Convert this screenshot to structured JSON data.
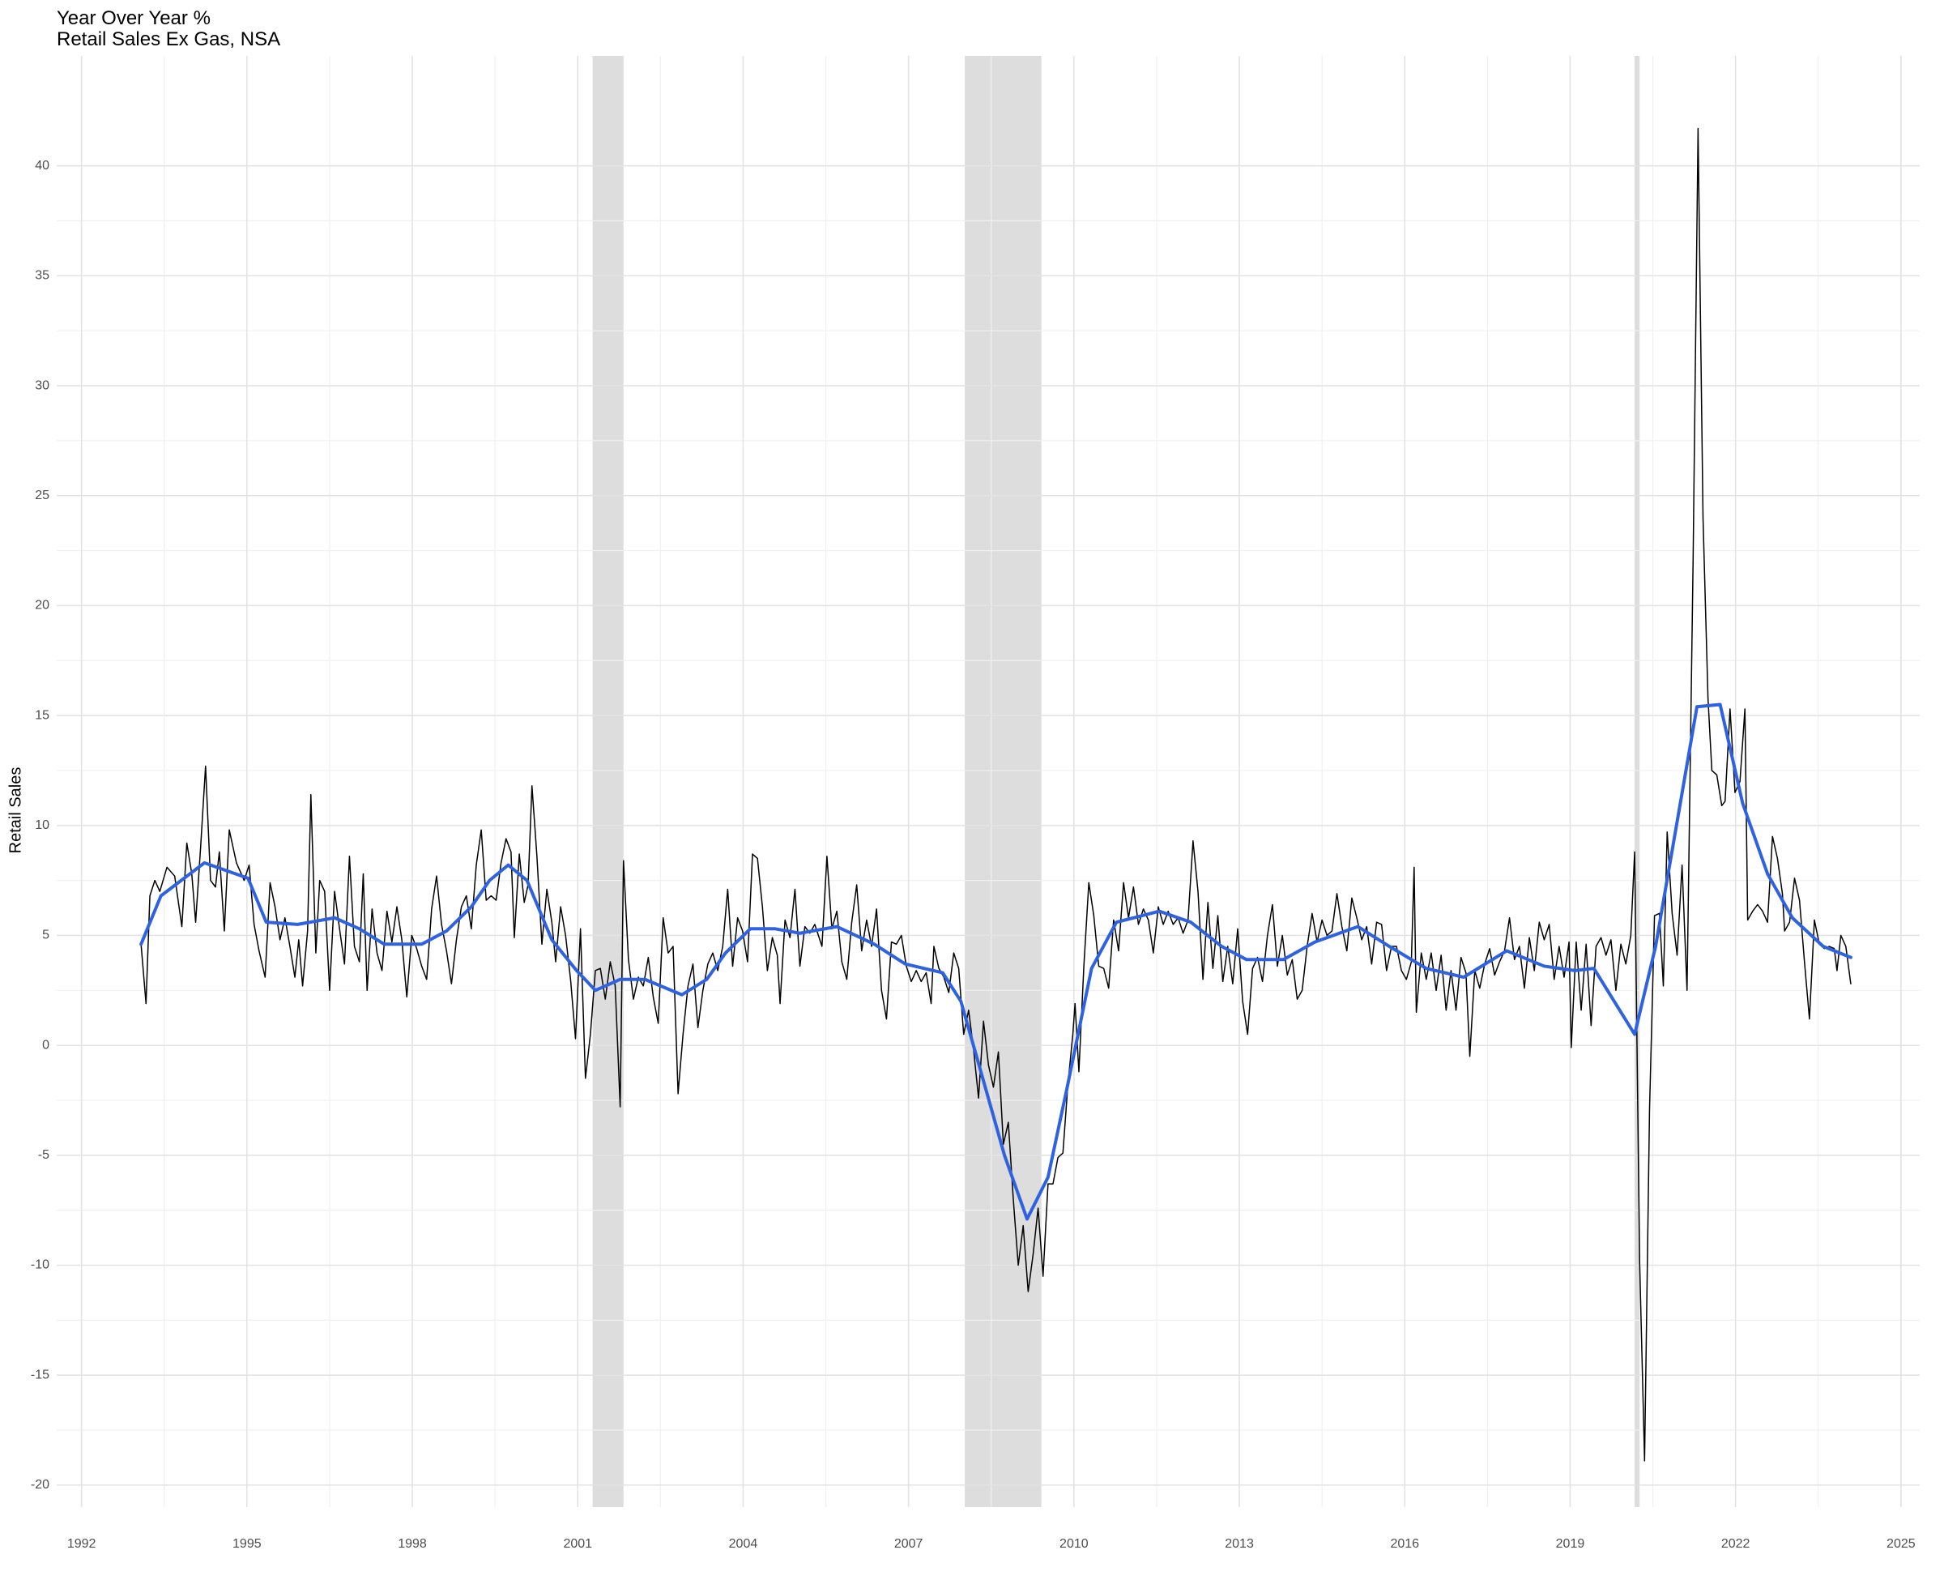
{
  "chart_data": {
    "type": "line",
    "title": "Year Over Year %",
    "subtitle": "Retail Sales Ex Gas, NSA",
    "y_label": "Retail Sales",
    "xlim": [
      1991.55,
      2025.34
    ],
    "ylim": [
      -21,
      45
    ],
    "xticks": [
      1992,
      1995,
      1998,
      2001,
      2004,
      2007,
      2010,
      2013,
      2016,
      2019,
      2022,
      2025
    ],
    "yticks": [
      -20,
      -15,
      -10,
      -5,
      0,
      5,
      10,
      15,
      20,
      25,
      30,
      35,
      40
    ],
    "grid": true,
    "shade_color": "#dddddd",
    "shaded_periods": [
      {
        "start": 2001.27,
        "end": 2001.83
      },
      {
        "start": 2008.02,
        "end": 2009.41
      },
      {
        "start": 2020.17,
        "end": 2020.26
      }
    ],
    "series": [
      {
        "color": "#000000",
        "width": 1.5,
        "x": [
          1993.08,
          1993.17,
          1993.24,
          1993.33,
          1993.42,
          1993.55,
          1993.69,
          1993.82,
          1993.91,
          1994.0,
          1994.07,
          1994.16,
          1994.25,
          1994.34,
          1994.43,
          1994.5,
          1994.59,
          1994.68,
          1994.81,
          1994.95,
          1995.04,
          1995.13,
          1995.22,
          1995.33,
          1995.42,
          1995.51,
          1995.6,
          1995.69,
          1995.78,
          1995.87,
          1995.94,
          1996.01,
          1996.1,
          1996.16,
          1996.25,
          1996.32,
          1996.41,
          1996.5,
          1996.59,
          1996.68,
          1996.77,
          1996.86,
          1996.95,
          1997.04,
          1997.11,
          1997.18,
          1997.27,
          1997.36,
          1997.45,
          1997.54,
          1997.63,
          1997.72,
          1997.81,
          1997.9,
          1997.99,
          1998.08,
          1998.17,
          1998.26,
          1998.35,
          1998.44,
          1998.53,
          1998.62,
          1998.71,
          1998.8,
          1998.89,
          1998.98,
          1999.07,
          1999.16,
          1999.25,
          1999.34,
          1999.43,
          1999.52,
          1999.61,
          1999.7,
          1999.79,
          1999.85,
          1999.94,
          2000.03,
          2000.1,
          2000.17,
          2000.26,
          2000.35,
          2000.44,
          2000.53,
          2000.6,
          2000.69,
          2000.78,
          2000.87,
          2000.96,
          2001.05,
          2001.14,
          2001.23,
          2001.32,
          2001.41,
          2001.5,
          2001.59,
          2001.68,
          2001.77,
          2001.83,
          2001.92,
          2002.01,
          2002.1,
          2002.19,
          2002.28,
          2002.37,
          2002.46,
          2002.55,
          2002.64,
          2002.73,
          2002.82,
          2002.91,
          2003.0,
          2003.09,
          2003.18,
          2003.27,
          2003.36,
          2003.45,
          2003.54,
          2003.63,
          2003.72,
          2003.81,
          2003.9,
          2003.99,
          2004.08,
          2004.17,
          2004.26,
          2004.35,
          2004.44,
          2004.53,
          2004.62,
          2004.67,
          2004.76,
          2004.85,
          2004.94,
          2005.03,
          2005.12,
          2005.21,
          2005.3,
          2005.43,
          2005.52,
          2005.61,
          2005.7,
          2005.79,
          2005.88,
          2005.97,
          2006.06,
          2006.15,
          2006.24,
          2006.33,
          2006.42,
          2006.51,
          2006.6,
          2006.69,
          2006.78,
          2006.87,
          2006.96,
          2007.05,
          2007.14,
          2007.23,
          2007.32,
          2007.41,
          2007.46,
          2007.55,
          2007.64,
          2007.73,
          2007.82,
          2007.91,
          2008.0,
          2008.09,
          2008.18,
          2008.27,
          2008.36,
          2008.45,
          2008.54,
          2008.63,
          2008.72,
          2008.81,
          2008.9,
          2008.99,
          2009.08,
          2009.17,
          2009.26,
          2009.35,
          2009.44,
          2009.53,
          2009.62,
          2009.71,
          2009.8,
          2009.89,
          2009.98,
          2010.02,
          2010.09,
          2010.18,
          2010.27,
          2010.36,
          2010.45,
          2010.54,
          2010.63,
          2010.72,
          2010.81,
          2010.9,
          2010.99,
          2011.08,
          2011.17,
          2011.26,
          2011.35,
          2011.44,
          2011.53,
          2011.62,
          2011.71,
          2011.8,
          2011.89,
          2011.98,
          2012.07,
          2012.16,
          2012.25,
          2012.34,
          2012.43,
          2012.52,
          2012.61,
          2012.7,
          2012.79,
          2012.88,
          2012.97,
          2013.06,
          2013.15,
          2013.24,
          2013.33,
          2013.42,
          2013.51,
          2013.6,
          2013.69,
          2013.78,
          2013.87,
          2013.96,
          2014.05,
          2014.14,
          2014.23,
          2014.32,
          2014.41,
          2014.5,
          2014.59,
          2014.68,
          2014.77,
          2014.86,
          2014.95,
          2015.04,
          2015.13,
          2015.22,
          2015.31,
          2015.4,
          2015.49,
          2015.58,
          2015.67,
          2015.76,
          2015.85,
          2015.94,
          2016.03,
          2016.12,
          2016.17,
          2016.21,
          2016.3,
          2016.39,
          2016.48,
          2016.57,
          2016.66,
          2016.75,
          2016.84,
          2016.93,
          2017.02,
          2017.11,
          2017.18,
          2017.27,
          2017.36,
          2017.45,
          2017.54,
          2017.63,
          2017.72,
          2017.81,
          2017.9,
          2017.99,
          2018.08,
          2018.17,
          2018.26,
          2018.35,
          2018.44,
          2018.53,
          2018.62,
          2018.71,
          2018.8,
          2018.89,
          2018.98,
          2019.02,
          2019.11,
          2019.2,
          2019.29,
          2019.38,
          2019.47,
          2019.56,
          2019.65,
          2019.74,
          2019.83,
          2019.92,
          2020.01,
          2020.1,
          2020.17,
          2020.26,
          2020.35,
          2020.44,
          2020.53,
          2020.62,
          2020.69,
          2020.76,
          2020.85,
          2020.94,
          2021.03,
          2021.12,
          2021.23,
          2021.32,
          2021.41,
          2021.5,
          2021.57,
          2021.66,
          2021.75,
          2021.81,
          2021.9,
          2021.99,
          2022.08,
          2022.17,
          2022.22,
          2022.31,
          2022.4,
          2022.49,
          2022.58,
          2022.67,
          2022.76,
          2022.85,
          2022.89,
          2022.98,
          2023.07,
          2023.16,
          2023.25,
          2023.34,
          2023.43,
          2023.52,
          2023.61,
          2023.7,
          2023.79,
          2023.84,
          2023.91,
          2024.0,
          2024.09
        ],
        "values": [
          4.6,
          1.9,
          6.8,
          7.5,
          7.0,
          8.1,
          7.7,
          5.4,
          9.2,
          7.8,
          5.6,
          9.0,
          12.7,
          7.5,
          7.2,
          8.8,
          5.2,
          9.8,
          8.3,
          7.5,
          8.2,
          5.5,
          4.3,
          3.1,
          7.4,
          6.3,
          4.8,
          5.8,
          4.5,
          3.1,
          4.8,
          2.7,
          5.2,
          11.4,
          4.2,
          7.5,
          7.0,
          2.5,
          7.0,
          5.3,
          3.7,
          8.6,
          4.5,
          3.8,
          7.8,
          2.5,
          6.2,
          4.2,
          3.4,
          6.1,
          4.7,
          6.3,
          4.8,
          2.2,
          5.0,
          4.4,
          3.6,
          3.0,
          6.2,
          7.7,
          5.5,
          4.3,
          2.8,
          4.8,
          6.3,
          6.8,
          5.3,
          8.2,
          9.8,
          6.6,
          6.8,
          6.6,
          8.3,
          9.4,
          8.8,
          4.9,
          8.7,
          6.5,
          7.3,
          11.8,
          8.6,
          4.6,
          7.1,
          5.6,
          3.8,
          6.3,
          5.0,
          3.0,
          0.3,
          5.3,
          -1.5,
          0.5,
          3.4,
          3.5,
          2.1,
          3.8,
          2.7,
          -2.8,
          8.4,
          3.9,
          2.1,
          3.1,
          2.7,
          4.0,
          2.2,
          1.0,
          5.8,
          4.2,
          4.5,
          -2.2,
          0.5,
          2.7,
          3.7,
          0.8,
          2.5,
          3.7,
          4.2,
          3.4,
          4.5,
          7.1,
          3.6,
          5.8,
          5.2,
          3.8,
          8.7,
          8.5,
          6.3,
          3.4,
          4.9,
          4.1,
          1.9,
          5.7,
          4.9,
          7.1,
          3.6,
          5.4,
          5.1,
          5.5,
          4.5,
          8.6,
          5.3,
          6.1,
          3.8,
          3.0,
          5.6,
          7.3,
          4.3,
          5.7,
          4.5,
          6.2,
          2.5,
          1.2,
          4.7,
          4.6,
          5.0,
          3.6,
          2.9,
          3.4,
          2.9,
          3.3,
          1.9,
          4.5,
          3.5,
          3.1,
          2.4,
          4.2,
          3.5,
          0.5,
          1.6,
          -0.2,
          -2.4,
          1.1,
          -0.9,
          -1.9,
          -0.3,
          -4.5,
          -3.5,
          -7.0,
          -10.0,
          -8.2,
          -11.2,
          -9.5,
          -7.4,
          -10.5,
          -6.3,
          -6.3,
          -5.1,
          -4.9,
          -1.8,
          0.5,
          1.9,
          -1.2,
          3.6,
          7.4,
          5.9,
          3.6,
          3.5,
          2.6,
          5.7,
          4.3,
          7.4,
          5.8,
          7.2,
          5.5,
          6.2,
          5.7,
          4.2,
          6.3,
          5.5,
          6.1,
          5.5,
          5.8,
          5.1,
          5.7,
          9.3,
          7.0,
          3.0,
          6.5,
          3.5,
          5.9,
          2.9,
          4.5,
          2.8,
          5.3,
          2.0,
          0.5,
          3.5,
          4.0,
          2.9,
          5.0,
          6.4,
          3.6,
          5.0,
          3.2,
          3.9,
          2.1,
          2.5,
          4.5,
          6.0,
          4.7,
          5.7,
          5.0,
          5.2,
          6.9,
          5.4,
          4.3,
          6.7,
          5.8,
          4.8,
          5.4,
          3.7,
          5.6,
          5.5,
          3.4,
          4.5,
          4.5,
          3.4,
          3.0,
          3.8,
          8.1,
          1.5,
          4.2,
          3.0,
          4.2,
          2.5,
          4.1,
          1.6,
          3.4,
          1.6,
          4.0,
          3.3,
          -0.5,
          3.4,
          2.6,
          3.7,
          4.4,
          3.2,
          3.8,
          4.3,
          5.8,
          3.9,
          4.5,
          2.6,
          4.9,
          3.4,
          5.6,
          4.8,
          5.5,
          3.0,
          4.5,
          3.1,
          4.7,
          -0.1,
          4.7,
          1.6,
          4.6,
          0.9,
          4.5,
          4.9,
          4.1,
          4.8,
          2.5,
          4.6,
          3.7,
          5.0,
          8.8,
          -9.8,
          -18.9,
          -2.9,
          5.9,
          6.0,
          2.7,
          9.7,
          6.0,
          4.1,
          8.2,
          2.5,
          22.0,
          41.7,
          24.0,
          15.8,
          12.5,
          12.3,
          10.9,
          11.1,
          15.3,
          11.5,
          12.0,
          15.3,
          5.7,
          6.1,
          6.4,
          6.1,
          5.6,
          9.5,
          8.5,
          6.9,
          5.2,
          5.6,
          7.6,
          6.6,
          3.8,
          1.2,
          5.7,
          4.6,
          4.4,
          4.5,
          4.4,
          3.4,
          5.0,
          4.5,
          2.8
        ]
      },
      {
        "color": "#2f62e0",
        "width": 4,
        "x": [
          1993.08,
          1993.44,
          1994.23,
          1995.02,
          1995.35,
          1995.92,
          1996.59,
          1997.04,
          1997.49,
          1998.17,
          1998.62,
          1999.07,
          1999.4,
          1999.74,
          2000.08,
          2000.53,
          2000.98,
          2001.32,
          2001.77,
          2002.22,
          2002.89,
          2003.34,
          2003.68,
          2004.13,
          2004.58,
          2005.03,
          2005.7,
          2006.38,
          2006.94,
          2007.62,
          2007.95,
          2008.29,
          2008.74,
          2009.15,
          2009.53,
          2009.87,
          2010.32,
          2010.77,
          2011.55,
          2012.12,
          2012.68,
          2013.13,
          2013.8,
          2014.37,
          2015.15,
          2015.72,
          2016.39,
          2017.07,
          2017.85,
          2018.53,
          2019.09,
          2019.43,
          2020.17,
          2020.55,
          2021.3,
          2021.72,
          2022.13,
          2022.58,
          2023.03,
          2023.59,
          2024.09
        ],
        "values": [
          4.6,
          6.8,
          8.3,
          7.6,
          5.6,
          5.5,
          5.8,
          5.3,
          4.6,
          4.6,
          5.2,
          6.3,
          7.5,
          8.2,
          7.5,
          4.8,
          3.4,
          2.5,
          3.0,
          3.0,
          2.3,
          3.0,
          4.2,
          5.3,
          5.3,
          5.1,
          5.4,
          4.6,
          3.7,
          3.3,
          2.0,
          -1.0,
          -5.0,
          -7.9,
          -6.0,
          -2.0,
          3.5,
          5.6,
          6.1,
          5.6,
          4.5,
          3.9,
          3.9,
          4.7,
          5.4,
          4.5,
          3.5,
          3.1,
          4.3,
          3.6,
          3.4,
          3.5,
          0.5,
          4.5,
          15.4,
          15.5,
          11.0,
          7.8,
          5.8,
          4.5,
          4.0
        ]
      }
    ]
  }
}
